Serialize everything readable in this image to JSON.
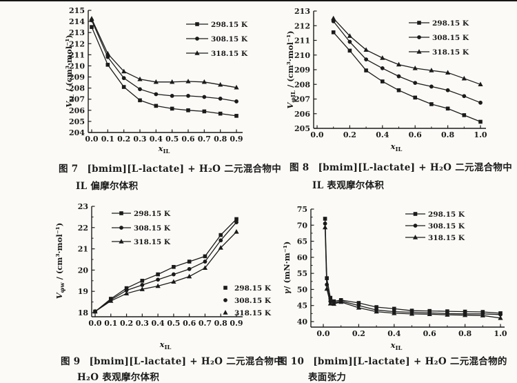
{
  "page": {
    "background": "#fbfaf6",
    "ink": "#1b1b1b",
    "top_rule_color": "#161616"
  },
  "chart_data": [
    {
      "id": "fig7",
      "type": "line",
      "xlabel": {
        "var": "x",
        "sub": "IL"
      },
      "ylabel": {
        "var": "V",
        "sub": "IL",
        "rest": " / (cm³·mol⁻¹)"
      },
      "xlim": [
        0.0,
        0.9
      ],
      "ylim": [
        204,
        215
      ],
      "xticks": {
        "values": [
          0.0,
          0.1,
          0.2,
          0.3,
          0.4,
          0.5,
          0.6,
          0.7,
          0.8,
          0.9
        ],
        "labels": [
          "0.0",
          "0.1",
          "0.2",
          "0.3",
          "0.4",
          "0.5",
          "0.6",
          "0.7",
          "0.8",
          "0.9"
        ]
      },
      "yticks": {
        "values": [
          204,
          205,
          206,
          207,
          208,
          209,
          210,
          211,
          212,
          213,
          214,
          215
        ],
        "labels": [
          "204",
          "205",
          "206",
          "207",
          "208",
          "209",
          "210",
          "211",
          "212",
          "213",
          "214",
          "215"
        ]
      },
      "legend": {
        "style": "line",
        "entries": [
          "298.15 K",
          "308.15 K",
          "318.15 K"
        ]
      },
      "series": [
        {
          "name": "298.15 K",
          "marker": "square",
          "x": [
            0.0,
            0.1,
            0.2,
            0.3,
            0.4,
            0.5,
            0.6,
            0.7,
            0.8,
            0.9
          ],
          "y": [
            213.5,
            210.1,
            208.1,
            206.9,
            206.4,
            206.15,
            206.0,
            205.9,
            205.7,
            205.5
          ]
        },
        {
          "name": "308.15 K",
          "marker": "circle",
          "x": [
            0.0,
            0.1,
            0.2,
            0.3,
            0.4,
            0.5,
            0.6,
            0.7,
            0.8,
            0.9
          ],
          "y": [
            214.1,
            210.8,
            208.9,
            207.9,
            207.45,
            207.3,
            207.3,
            207.2,
            207.05,
            206.8
          ]
        },
        {
          "name": "318.15 K",
          "marker": "triangle",
          "x": [
            0.0,
            0.1,
            0.2,
            0.3,
            0.4,
            0.5,
            0.6,
            0.7,
            0.8,
            0.9
          ],
          "y": [
            214.25,
            211.1,
            209.5,
            208.8,
            208.55,
            208.55,
            208.6,
            208.55,
            208.3,
            208.05
          ]
        }
      ],
      "caption": {
        "label": "图 7",
        "line1": "[bmim][L-lactate] + H₂O 二元混合物中",
        "line2": "IL 偏摩尔体积"
      }
    },
    {
      "id": "fig8",
      "type": "line",
      "xlabel": {
        "var": "x",
        "sub": "IL"
      },
      "ylabel": {
        "var": "V",
        "sub": "φIL",
        "rest": " / (cm³·mol⁻¹)"
      },
      "xlim": [
        0.0,
        1.0
      ],
      "ylim": [
        205,
        213
      ],
      "xticks": {
        "values": [
          0.0,
          0.2,
          0.4,
          0.6,
          0.8,
          1.0
        ],
        "labels": [
          "0.0",
          "0.2",
          "0.4",
          "0.6",
          "0.8",
          "1.0"
        ]
      },
      "yticks": {
        "values": [
          205,
          206,
          207,
          208,
          209,
          210,
          211,
          212,
          213
        ],
        "labels": [
          "205",
          "206",
          "207",
          "208",
          "209",
          "210",
          "211",
          "212",
          "213"
        ]
      },
      "legend": {
        "style": "line",
        "entries": [
          "298.15 K",
          "308.15 K",
          "318.15 K"
        ]
      },
      "series": [
        {
          "name": "298.15 K",
          "marker": "square",
          "x": [
            0.1,
            0.2,
            0.3,
            0.4,
            0.5,
            0.6,
            0.7,
            0.8,
            0.9,
            1.0
          ],
          "y": [
            211.55,
            210.3,
            208.95,
            208.2,
            207.6,
            207.1,
            206.65,
            206.35,
            205.9,
            205.45
          ]
        },
        {
          "name": "308.15 K",
          "marker": "circle",
          "x": [
            0.1,
            0.2,
            0.3,
            0.4,
            0.5,
            0.6,
            0.7,
            0.8,
            0.9,
            1.0
          ],
          "y": [
            212.3,
            210.9,
            209.7,
            209.1,
            208.55,
            208.1,
            207.85,
            207.6,
            207.2,
            206.75
          ]
        },
        {
          "name": "318.15 K",
          "marker": "triangle",
          "x": [
            0.1,
            0.2,
            0.3,
            0.4,
            0.5,
            0.6,
            0.7,
            0.8,
            0.9,
            1.0
          ],
          "y": [
            212.5,
            211.3,
            210.35,
            209.8,
            209.35,
            209.1,
            208.95,
            208.8,
            208.4,
            208.0
          ]
        }
      ],
      "caption": {
        "label": "图 8",
        "line1": "[bmim][L-lactate] + H₂O 二元混合物中",
        "line2": "IL 表观摩尔体积"
      }
    },
    {
      "id": "fig9",
      "type": "line",
      "xlabel": {
        "var": "x",
        "sub": "IL"
      },
      "ylabel": {
        "var": "V",
        "sub": "φw",
        "rest": " / (cm³·mol⁻¹)"
      },
      "xlim": [
        0.0,
        0.9
      ],
      "ylim": [
        18,
        23
      ],
      "xticks": {
        "values": [
          0.0,
          0.1,
          0.2,
          0.3,
          0.4,
          0.5,
          0.6,
          0.7,
          0.8,
          0.9
        ],
        "labels": [
          "0.0",
          "0.1",
          "0.2",
          "0.3",
          "0.4",
          "0.5",
          "0.6",
          "0.7",
          "0.8",
          "0.9"
        ]
      },
      "yticks": {
        "values": [
          18,
          19,
          20,
          21,
          22,
          23
        ],
        "labels": [
          "18",
          "19",
          "20",
          "21",
          "22",
          "23"
        ]
      },
      "legend": {
        "style": "line",
        "entries": [
          "298.15 K",
          "308.15 K",
          "318.15 K"
        ]
      },
      "legend2": {
        "style": "marker",
        "entries": [
          "298.15 K",
          "308.15 K",
          "318.15 K"
        ]
      },
      "series": [
        {
          "name": "298.15 K",
          "marker": "square",
          "x": [
            0.0,
            0.1,
            0.2,
            0.3,
            0.4,
            0.5,
            0.6,
            0.7,
            0.8,
            0.9
          ],
          "y": [
            18.05,
            18.65,
            19.15,
            19.5,
            19.8,
            20.15,
            20.4,
            20.65,
            21.65,
            22.4
          ]
        },
        {
          "name": "308.15 K",
          "marker": "circle",
          "x": [
            0.0,
            0.1,
            0.2,
            0.3,
            0.4,
            0.5,
            0.6,
            0.7,
            0.8,
            0.9
          ],
          "y": [
            18.05,
            18.6,
            19.05,
            19.3,
            19.55,
            19.8,
            20.05,
            20.4,
            21.4,
            22.25
          ]
        },
        {
          "name": "318.15 K",
          "marker": "triangle",
          "x": [
            0.0,
            0.1,
            0.2,
            0.3,
            0.4,
            0.5,
            0.6,
            0.7,
            0.8,
            0.9
          ],
          "y": [
            18.05,
            18.55,
            18.9,
            19.1,
            19.25,
            19.45,
            19.7,
            20.1,
            21.05,
            21.8
          ]
        }
      ],
      "caption": {
        "label": "图 9",
        "line1": "[bmim][L-lactate] + H₂O 二元混合物中",
        "line2": "H₂O 表观摩尔体积"
      }
    },
    {
      "id": "fig10",
      "type": "line",
      "xlabel": {
        "var": "x",
        "sub": "IL"
      },
      "ylabel": {
        "var": "γ",
        "sub": "",
        "rest": "/ (mN·m⁻¹)"
      },
      "xlim": [
        0.0,
        1.0
      ],
      "ylim": [
        40,
        75
      ],
      "xticks": {
        "values": [
          0.0,
          0.2,
          0.4,
          0.6,
          0.8,
          1.0
        ],
        "labels": [
          "0.0",
          "0.2",
          "0.4",
          "0.6",
          "0.8",
          "1.0"
        ]
      },
      "yticks": {
        "values": [
          40,
          45,
          50,
          55,
          60,
          65,
          70,
          75
        ],
        "labels": [
          "40",
          "45",
          "50",
          "55",
          "60",
          "65",
          "70",
          "75"
        ]
      },
      "legend": {
        "style": "line",
        "entries": [
          "298.15 K",
          "308.15 K",
          "318.15 K"
        ]
      },
      "series": [
        {
          "name": "298.15 K",
          "marker": "square",
          "x": [
            0.01,
            0.02,
            0.04,
            0.06,
            0.1,
            0.2,
            0.3,
            0.4,
            0.5,
            0.6,
            0.7,
            0.8,
            0.9,
            1.0
          ],
          "y": [
            72.0,
            53.5,
            47.4,
            46.3,
            46.7,
            45.8,
            44.5,
            44.0,
            43.4,
            43.3,
            43.2,
            43.1,
            43.0,
            42.6
          ]
        },
        {
          "name": "308.15 K",
          "marker": "circle",
          "x": [
            0.01,
            0.02,
            0.04,
            0.06,
            0.1,
            0.2,
            0.3,
            0.4,
            0.5,
            0.6,
            0.7,
            0.8,
            0.9,
            1.0
          ],
          "y": [
            70.5,
            51.5,
            46.3,
            45.8,
            46.4,
            45.0,
            43.6,
            43.1,
            42.9,
            42.7,
            42.5,
            42.4,
            42.4,
            42.2
          ]
        },
        {
          "name": "318.15 K",
          "marker": "triangle",
          "x": [
            0.01,
            0.02,
            0.04,
            0.06,
            0.1,
            0.2,
            0.3,
            0.4,
            0.5,
            0.6,
            0.7,
            0.8,
            0.9,
            1.0
          ],
          "y": [
            69.3,
            50.2,
            45.6,
            45.5,
            46.1,
            44.3,
            43.1,
            42.6,
            42.4,
            42.3,
            42.1,
            42.0,
            41.9,
            41.1
          ]
        }
      ],
      "caption": {
        "label": "图 10",
        "line1": "[bmim][L-lactate] + H₂O 二元混合物的",
        "line2": "表面张力"
      }
    }
  ]
}
